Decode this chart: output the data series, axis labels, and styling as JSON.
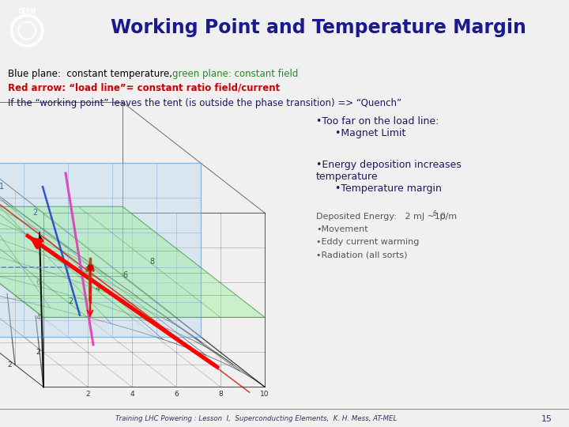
{
  "title": "Working Point and Temperature Margin",
  "title_color": "#1a1a8c",
  "title_fontsize": 17,
  "header_bg": "#c8c8c8",
  "slide_bg": "#f0f0f0",
  "footer_text": "Training LHC Powering : Lesson  I,  Superconducting Elements,  K. H. Mess, AT-MEL",
  "footer_page": "15",
  "line1_black": "Blue plane:  constant temperature, ",
  "line1_green": "green plane: constant field",
  "line2_red": "Red arrow: “load line”= constant ratio field/current",
  "line3": "If the “working point” leaves the tent (is outside the phase transition) => “Quench”",
  "bullet1a": "•Too far on the load line:",
  "bullet1b": "      •Magnet Limit",
  "bullet2a": "•Energy deposition increases",
  "bullet2b": "temperature",
  "bullet2c": "      •Temperature margin",
  "deposit_line": "Deposited Energy:   2 mJ ~10",
  "deposit_exp": "6",
  "deposit_unit": " p/m",
  "bullets_right": [
    "•Movement",
    "•Eddy current warming",
    "•Radiation (all sorts)"
  ]
}
